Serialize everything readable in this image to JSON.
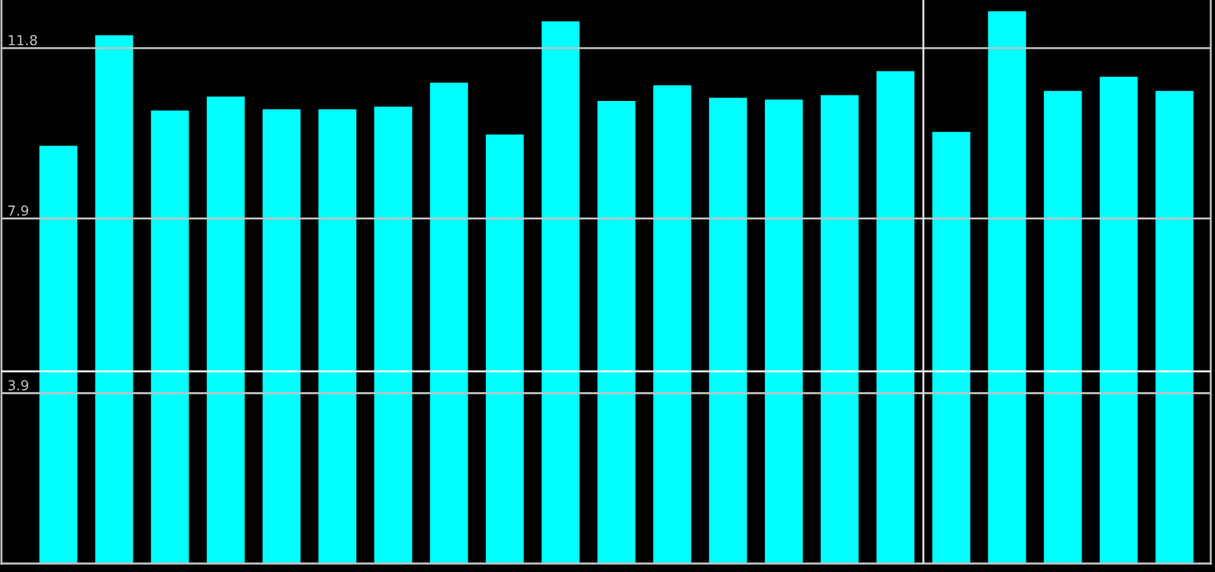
{
  "chart_data": {
    "type": "bar",
    "categories": [
      null,
      null,
      null,
      null,
      null,
      null,
      null,
      null,
      null,
      null,
      null,
      null,
      null,
      null,
      null,
      null,
      null,
      null,
      null,
      null,
      null
    ],
    "values": [
      9.56,
      12.09,
      10.37,
      10.69,
      10.4,
      10.4,
      10.46,
      11.01,
      9.82,
      12.41,
      10.59,
      10.95,
      10.66,
      10.62,
      10.72,
      11.27,
      9.88,
      12.64,
      10.82,
      11.14,
      10.82
    ],
    "color": "#00ffff",
    "ylim": [
      0,
      12.9
    ],
    "yticks": [
      3.9,
      7.9,
      11.8
    ],
    "grid": "y",
    "tick_labels": "y",
    "ref_lines": [
      {
        "axis": "y",
        "value": 4.4,
        "color": "#ffffff"
      }
    ]
  }
}
